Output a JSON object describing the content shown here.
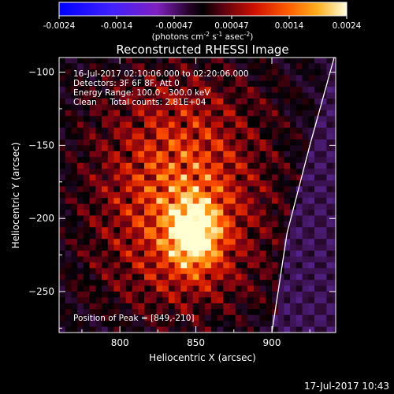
{
  "colorbar": {
    "ticks": [
      "-0.0024",
      "-0.0014",
      "-0.00047",
      "0.00047",
      "0.0014",
      "0.0024"
    ],
    "units_main": "(photons cm",
    "units_sup1": "-2",
    "units_mid1": " s",
    "units_sup2": "-1",
    "units_mid2": " asec",
    "units_sup3": "-2",
    "units_end": ")"
  },
  "chart_data": {
    "type": "heatmap",
    "title": "Reconstructed RHESSI Image",
    "xlabel": "Heliocentric X (arcsec)",
    "ylabel": "Heliocentric Y (arcsec)",
    "xlim": [
      760,
      942
    ],
    "ylim": [
      -278,
      -90
    ],
    "xticks": [
      "800",
      "850",
      "900"
    ],
    "yticks": [
      "-100",
      "-150",
      "-200",
      "-250"
    ],
    "color_range": [
      -0.0024,
      0.0024
    ],
    "peak": {
      "x": 849,
      "y": -210
    },
    "annotations": [
      "16-Jul-2017 02:10:06.000 to 02:20:06.000",
      "Detectors: 3F 6F 8F, Att 0",
      "Energy Range: 100.0 - 300.0 keV",
      "Clean     Total counts: 2.81E+04",
      "Position of Peak = [849,-210]"
    ],
    "limb_line": [
      {
        "x": 941,
        "y": -90
      },
      {
        "x": 925,
        "y": -150
      },
      {
        "x": 910,
        "y": -210
      },
      {
        "x": 900,
        "y": -278
      }
    ]
  },
  "footer": {
    "timestamp": "17-Jul-2017 10:43"
  }
}
